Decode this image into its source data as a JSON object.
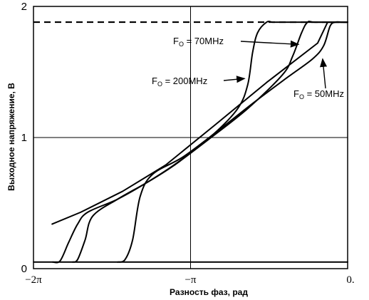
{
  "chart_data": {
    "type": "line",
    "title": "",
    "xlabel": "Разность фаз, рад",
    "ylabel": "Выходное напряжение, В",
    "xlim": [
      -6.2832,
      0
    ],
    "ylim": [
      0,
      2
    ],
    "x_ticks": [
      {
        "value": -6.2832,
        "label": "−2π"
      },
      {
        "value": -3.1416,
        "label": "−π"
      },
      {
        "value": 0,
        "label": "0."
      }
    ],
    "y_ticks": [
      {
        "value": 0,
        "label": "0"
      },
      {
        "value": 1,
        "label": "1"
      },
      {
        "value": 2,
        "label": "2"
      }
    ],
    "grid": true,
    "reference_lines": [
      {
        "style": "dashed",
        "y": 1.88
      }
    ],
    "series": [
      {
        "x": [
          -6.28,
          -5.92,
          -3.38,
          -2.8,
          -1.6,
          -0.75,
          0
        ],
        "y": [
          0.05,
          0.05,
          0.05,
          0.05,
          0.05,
          0.05,
          0.05
        ],
        "style": "flat-low"
      },
      {
        "x": [
          -5.91,
          -5.34,
          -4.5,
          -3.64,
          -2.64,
          -1.62,
          -0.6,
          -0.4,
          0
        ],
        "y": [
          0.34,
          0.43,
          0.59,
          0.79,
          1.1,
          1.42,
          1.72,
          1.88,
          1.88
        ],
        "style": "linear-reference"
      },
      {
        "label": "F_O = 200MHz",
        "x": [
          -5.9,
          -5.75,
          -5.58,
          -5.4,
          -5.2,
          -4.6,
          -4.0,
          -3.4,
          -2.7,
          -2.2,
          -2.0,
          -1.9,
          -1.8,
          -1.62,
          -1.5,
          -1.3,
          0
        ],
        "y": [
          0.05,
          0.06,
          0.2,
          0.34,
          0.43,
          0.53,
          0.66,
          0.81,
          1.02,
          1.22,
          1.4,
          1.65,
          1.8,
          1.88,
          1.88,
          1.88,
          1.88
        ]
      },
      {
        "label": "F_O = 70MHz",
        "x": [
          -5.5,
          -5.4,
          -5.25,
          -5.1,
          -4.6,
          -4.0,
          -3.5,
          -2.8,
          -2.0,
          -1.3,
          -1.1,
          -0.92,
          -0.8,
          -0.65,
          0
        ],
        "y": [
          0.05,
          0.07,
          0.22,
          0.4,
          0.53,
          0.66,
          0.78,
          0.98,
          1.22,
          1.48,
          1.62,
          1.8,
          1.88,
          1.88,
          1.88
        ]
      },
      {
        "label": "F_O = 50MHz",
        "x": [
          -4.6,
          -4.45,
          -4.3,
          -4.15,
          -3.9,
          -3.3,
          -2.6,
          -1.9,
          -1.2,
          -0.7,
          -0.48,
          -0.35,
          -0.25,
          -0.12,
          0
        ],
        "y": [
          0.05,
          0.07,
          0.22,
          0.55,
          0.72,
          0.85,
          1.05,
          1.26,
          1.46,
          1.6,
          1.7,
          1.85,
          1.88,
          1.88,
          1.88
        ]
      }
    ],
    "annotations": [
      {
        "id": "f70",
        "base": "F",
        "sub": "O",
        "text": " = 70MHz",
        "arrow_to_x": -0.98,
        "arrow_to_y": 1.71
      },
      {
        "id": "f200",
        "base": "F",
        "sub": "O",
        "text": " = 200MHz",
        "arrow_to_x": -2.06,
        "arrow_to_y": 1.45
      },
      {
        "id": "f50",
        "base": "F",
        "sub": "O",
        "text": " = 50MHz",
        "arrow_to_x": -0.5,
        "arrow_to_y": 1.6
      }
    ]
  }
}
